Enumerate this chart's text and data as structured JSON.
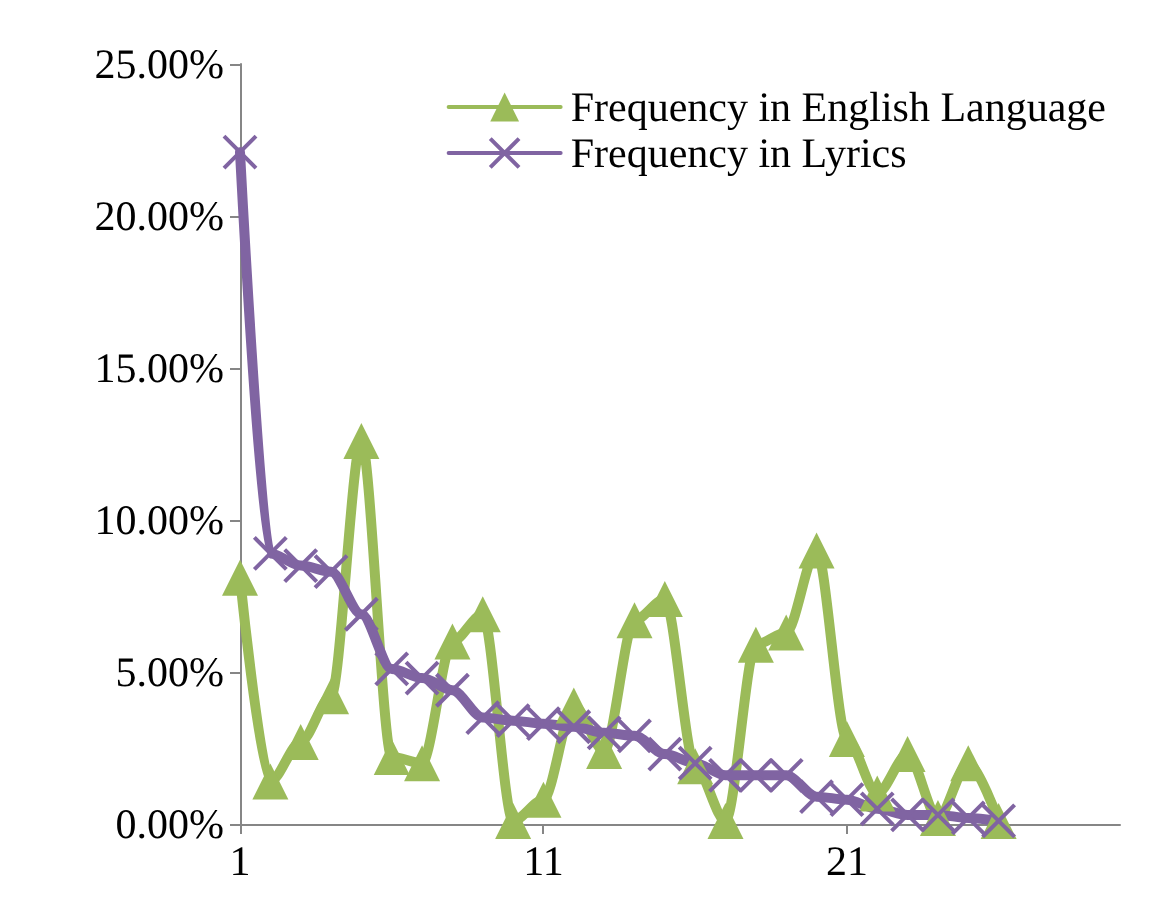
{
  "chart_data": {
    "type": "line",
    "x": [
      1,
      2,
      3,
      4,
      5,
      6,
      7,
      8,
      9,
      10,
      11,
      12,
      13,
      14,
      15,
      16,
      17,
      18,
      19,
      20,
      21,
      22,
      23,
      24,
      25,
      26
    ],
    "series": [
      {
        "name": "Frequency in English Language",
        "color": "#9bbb59",
        "marker": "triangle",
        "values": [
          8.1,
          1.4,
          2.7,
          4.2,
          12.6,
          2.2,
          2.0,
          6.0,
          6.9,
          0.1,
          0.8,
          3.9,
          2.4,
          6.7,
          7.4,
          1.9,
          0.1,
          5.9,
          6.3,
          9.0,
          2.8,
          1.0,
          2.3,
          0.2,
          2.0,
          0.1
        ]
      },
      {
        "name": "Frequency in Lyrics",
        "color": "#8064a2",
        "marker": "cross",
        "values": [
          22.1,
          8.9,
          8.5,
          8.3,
          6.9,
          5.1,
          4.8,
          4.4,
          3.5,
          3.4,
          3.3,
          3.2,
          3.0,
          2.9,
          2.3,
          2.0,
          1.6,
          1.6,
          1.6,
          0.9,
          0.8,
          0.5,
          0.3,
          0.3,
          0.2,
          0.1
        ]
      }
    ],
    "xlim": [
      1,
      30
    ],
    "xticks": [
      1,
      11,
      21
    ],
    "ylim": [
      0,
      25
    ],
    "yticks": [
      {
        "value": 0,
        "label": "0.00%"
      },
      {
        "value": 5,
        "label": "5.00%"
      },
      {
        "value": 10,
        "label": "10.00%"
      },
      {
        "value": 15,
        "label": "15.00%"
      },
      {
        "value": 20,
        "label": "20.00%"
      },
      {
        "value": 25,
        "label": "25.00%"
      }
    ],
    "grid": false,
    "legend": "top right"
  }
}
